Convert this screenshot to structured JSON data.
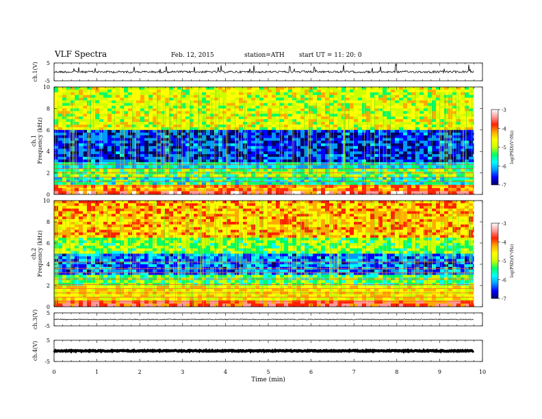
{
  "header": {
    "title": "VLF  Spectra",
    "date": "Feb. 12, 2015",
    "station": "station=ATH",
    "start": "start  UT  =    11: 20: 0"
  },
  "colorbar": {
    "label": "log(PSD)(V²/Hz)",
    "ticks": [
      "-3",
      "-4",
      "-5",
      "-6",
      "-7"
    ],
    "colors": [
      "#000066",
      "#0000ff",
      "#0099ff",
      "#00ffff",
      "#00ff66",
      "#ccff00",
      "#ffff00",
      "#ffaa00",
      "#ff2200",
      "#ff9999",
      "#ffffff"
    ]
  },
  "chart_data": [
    {
      "type": "line",
      "panel": "ch1_waveform",
      "ylabel": "ch.1(V)",
      "ylim": [
        -5,
        5
      ],
      "yticks": [
        "5",
        "-5"
      ],
      "xlim": [
        0,
        10
      ],
      "data_xmax": 9.8,
      "baseline": 0,
      "color": "#000000"
    },
    {
      "type": "heatmap",
      "panel": "ch1_spectrogram",
      "ylabel": "ch.1 Frequency  (kHz)",
      "ylim": [
        0,
        10
      ],
      "yticks": [
        "10",
        "8",
        "6",
        "4",
        "2",
        "0"
      ],
      "xlim": [
        0,
        10
      ],
      "data_xmax": 9.8,
      "zlim": [
        -7,
        -3
      ]
    },
    {
      "type": "heatmap",
      "panel": "ch2_spectrogram",
      "ylabel": "ch.2 Frequency  (kHz)",
      "ylim": [
        0,
        10
      ],
      "yticks": [
        "10",
        "8",
        "6",
        "4",
        "2",
        "0"
      ],
      "xlim": [
        0,
        10
      ],
      "data_xmax": 9.8,
      "zlim": [
        -7,
        -3
      ]
    },
    {
      "type": "line",
      "panel": "ch3_waveform",
      "ylabel": "ch.3(V)",
      "ylim": [
        -5,
        5
      ],
      "yticks": [
        "5",
        "-5"
      ],
      "xlim": [
        0,
        10
      ],
      "data_xmax": 9.8,
      "baseline": 0,
      "color": "#000000"
    },
    {
      "type": "line",
      "panel": "ch4_waveform",
      "ylabel": "ch.4(V)",
      "ylim": [
        -5,
        5
      ],
      "yticks": [
        "5",
        "-5"
      ],
      "xlim": [
        0,
        10
      ],
      "xticks": [
        "0",
        "1",
        "2",
        "3",
        "4",
        "5",
        "6",
        "7",
        "8",
        "9",
        "10"
      ],
      "xlabel": "Time  (min)",
      "data_xmax": 9.8,
      "baseline": 0,
      "color": "#000000"
    }
  ]
}
